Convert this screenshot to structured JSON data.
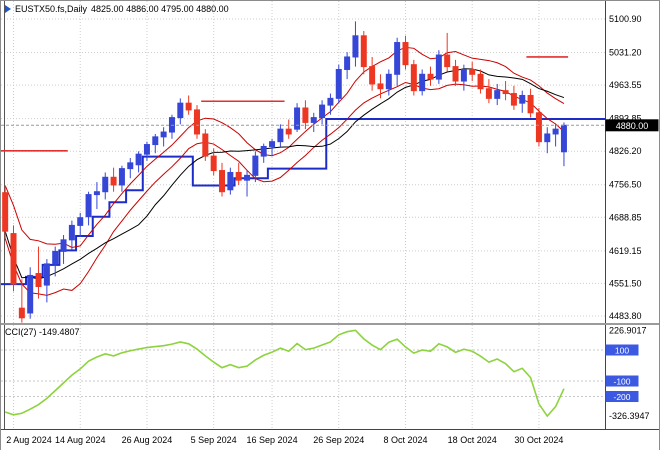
{
  "header": {
    "symbol_label": "EUSTX50.fs,Daily",
    "ohlc": "4825.00 4886.00 4795.00 4880.00"
  },
  "indicator": {
    "label": "CCI(27) -149.4807"
  },
  "colors": {
    "bull": "#3647D7",
    "bear": "#ED3723",
    "ma_red": "#CC0000",
    "ma_black": "#000000",
    "step_blue": "#1C2CC8",
    "trend_red": "#E03030",
    "cci_green": "#8DD33E",
    "badge_blue": "#3B59E1",
    "grid": "#CDCDCD",
    "tag_black": "#000000"
  },
  "chart_data": {
    "type": "candlestick",
    "title": "EUSTX50.fs Daily with CCI(27)",
    "price_range": [
      4483.8,
      5100.9
    ],
    "current_price": "4880.00",
    "price_ticks": [
      "5100.90",
      "5031.20",
      "4963.55",
      "4893.85",
      "4826.20",
      "4756.50",
      "4688.85",
      "4619.15",
      "4551.50",
      "4483.80"
    ],
    "time_labels": [
      {
        "i": 1,
        "t": "2 Aug 2024"
      },
      {
        "i": 9,
        "t": "14 Aug 2024"
      },
      {
        "i": 17,
        "t": "26 Aug 2024"
      },
      {
        "i": 25,
        "t": "5 Sep 2024"
      },
      {
        "i": 32,
        "t": "16 Sep 2024"
      },
      {
        "i": 40,
        "t": "26 Sep 2024"
      },
      {
        "i": 48,
        "t": "8 Oct 2024"
      },
      {
        "i": 56,
        "t": "18 Oct 2024"
      },
      {
        "i": 64,
        "t": "30 Oct 2024"
      }
    ],
    "candles": [
      [
        4740,
        4755,
        4645,
        4660
      ],
      [
        4655,
        4672,
        4535,
        4550
      ],
      [
        4500,
        4560,
        4470,
        4480
      ],
      [
        4490,
        4585,
        4478,
        4568
      ],
      [
        4572,
        4628,
        4520,
        4545
      ],
      [
        4548,
        4602,
        4512,
        4592
      ],
      [
        4592,
        4628,
        4566,
        4618
      ],
      [
        4618,
        4652,
        4592,
        4642
      ],
      [
        4642,
        4682,
        4622,
        4672
      ],
      [
        4672,
        4698,
        4648,
        4688
      ],
      [
        4690,
        4742,
        4672,
        4736
      ],
      [
        4736,
        4762,
        4706,
        4742
      ],
      [
        4742,
        4782,
        4726,
        4772
      ],
      [
        4772,
        4792,
        4742,
        4756
      ],
      [
        4756,
        4796,
        4742,
        4790
      ],
      [
        4790,
        4812,
        4770,
        4802
      ],
      [
        4798,
        4826,
        4782,
        4820
      ],
      [
        4820,
        4846,
        4806,
        4840
      ],
      [
        4840,
        4862,
        4822,
        4856
      ],
      [
        4856,
        4876,
        4836,
        4866
      ],
      [
        4866,
        4902,
        4852,
        4896
      ],
      [
        4896,
        4936,
        4882,
        4926
      ],
      [
        4926,
        4942,
        4902,
        4912
      ],
      [
        4912,
        4922,
        4852,
        4862
      ],
      [
        4862,
        4872,
        4806,
        4816
      ],
      [
        4816,
        4832,
        4776,
        4786
      ],
      [
        4786,
        4802,
        4732,
        4742
      ],
      [
        4746,
        4792,
        4736,
        4782
      ],
      [
        4782,
        4802,
        4756,
        4766
      ],
      [
        4766,
        4786,
        4732,
        4776
      ],
      [
        4776,
        4826,
        4762,
        4816
      ],
      [
        4816,
        4842,
        4802,
        4836
      ],
      [
        4836,
        4852,
        4816,
        4846
      ],
      [
        4846,
        4882,
        4836,
        4872
      ],
      [
        4872,
        4892,
        4852,
        4862
      ],
      [
        4872,
        4926,
        4866,
        4916
      ],
      [
        4916,
        4932,
        4872,
        4886
      ],
      [
        4886,
        4906,
        4866,
        4896
      ],
      [
        4896,
        4932,
        4882,
        4922
      ],
      [
        4922,
        4946,
        4902,
        4936
      ],
      [
        4936,
        5006,
        4926,
        4996
      ],
      [
        4996,
        5032,
        4976,
        5022
      ],
      [
        5022,
        5096,
        5002,
        5066
      ],
      [
        5066,
        5076,
        4986,
        5002
      ],
      [
        5002,
        5022,
        4952,
        4966
      ],
      [
        4966,
        4986,
        4936,
        4956
      ],
      [
        4956,
        4996,
        4942,
        4986
      ],
      [
        4986,
        5062,
        4962,
        5052
      ],
      [
        5052,
        5066,
        4996,
        5006
      ],
      [
        5006,
        5016,
        4942,
        4952
      ],
      [
        4952,
        4996,
        4942,
        4986
      ],
      [
        4986,
        5002,
        4962,
        4976
      ],
      [
        4976,
        5036,
        4966,
        5026
      ],
      [
        5026,
        5072,
        4992,
        5002
      ],
      [
        5002,
        5016,
        4962,
        4972
      ],
      [
        4972,
        5006,
        4952,
        4996
      ],
      [
        4996,
        5012,
        4972,
        4986
      ],
      [
        4986,
        4996,
        4946,
        4956
      ],
      [
        4956,
        4976,
        4926,
        4936
      ],
      [
        4936,
        4966,
        4922,
        4952
      ],
      [
        4952,
        4972,
        4932,
        4946
      ],
      [
        4946,
        4962,
        4912,
        4922
      ],
      [
        4926,
        4952,
        4906,
        4942
      ],
      [
        4942,
        4956,
        4896,
        4906
      ],
      [
        4906,
        4916,
        4836,
        4846
      ],
      [
        4846,
        4876,
        4822,
        4862
      ],
      [
        4862,
        4882,
        4836,
        4872
      ],
      [
        4825,
        4886,
        4795,
        4880
      ]
    ],
    "overlays": {
      "ma_fast_period": 8,
      "ma_slow_period": 16,
      "red_segments": [
        {
          "i0": 0,
          "i1": 8,
          "price": 4827
        },
        {
          "i0": 24,
          "i1": 34,
          "price": 4930
        },
        {
          "i0": 63,
          "i1": 68,
          "price": 5022
        }
      ],
      "blue_step": [
        {
          "i0": 0,
          "i1": 2,
          "price": 4550
        },
        {
          "i0": 3,
          "i1": 4,
          "price": 4565
        },
        {
          "i0": 5,
          "i1": 6,
          "price": 4590
        },
        {
          "i0": 7,
          "i1": 8,
          "price": 4620
        },
        {
          "i0": 9,
          "i1": 10,
          "price": 4650
        },
        {
          "i0": 11,
          "i1": 12,
          "price": 4690
        },
        {
          "i0": 13,
          "i1": 14,
          "price": 4720
        },
        {
          "i0": 15,
          "i1": 16,
          "price": 4745
        },
        {
          "i0": 17,
          "i1": 22,
          "price": 4815
        },
        {
          "i0": 23,
          "i1": 27,
          "price": 4755
        },
        {
          "i0": 28,
          "i1": 31,
          "price": 4770
        },
        {
          "i0": 32,
          "i1": 38,
          "price": 4790
        },
        {
          "i0": 39,
          "i1": 79,
          "price": 4893
        }
      ]
    },
    "cci": {
      "period": 27,
      "current_label": "-149.4807",
      "max_label": "226.9017",
      "min_label": "-326.3947",
      "levels": [
        "100",
        "-100",
        "-200"
      ],
      "values": [
        -300,
        -318,
        -308,
        -282,
        -252,
        -212,
        -162,
        -112,
        -62,
        -22,
        28,
        55,
        75,
        62,
        82,
        95,
        106,
        116,
        122,
        128,
        138,
        152,
        140,
        106,
        62,
        22,
        -14,
        6,
        -14,
        -4,
        36,
        66,
        86,
        112,
        92,
        142,
        102,
        112,
        132,
        152,
        198,
        218,
        226.9,
        172,
        132,
        102,
        150,
        170,
        120,
        80,
        100,
        92,
        140,
        120,
        85,
        105,
        92,
        60,
        22,
        42,
        12,
        -40,
        -18,
        -78,
        -248,
        -326.39,
        -265,
        -149.48
      ]
    }
  }
}
